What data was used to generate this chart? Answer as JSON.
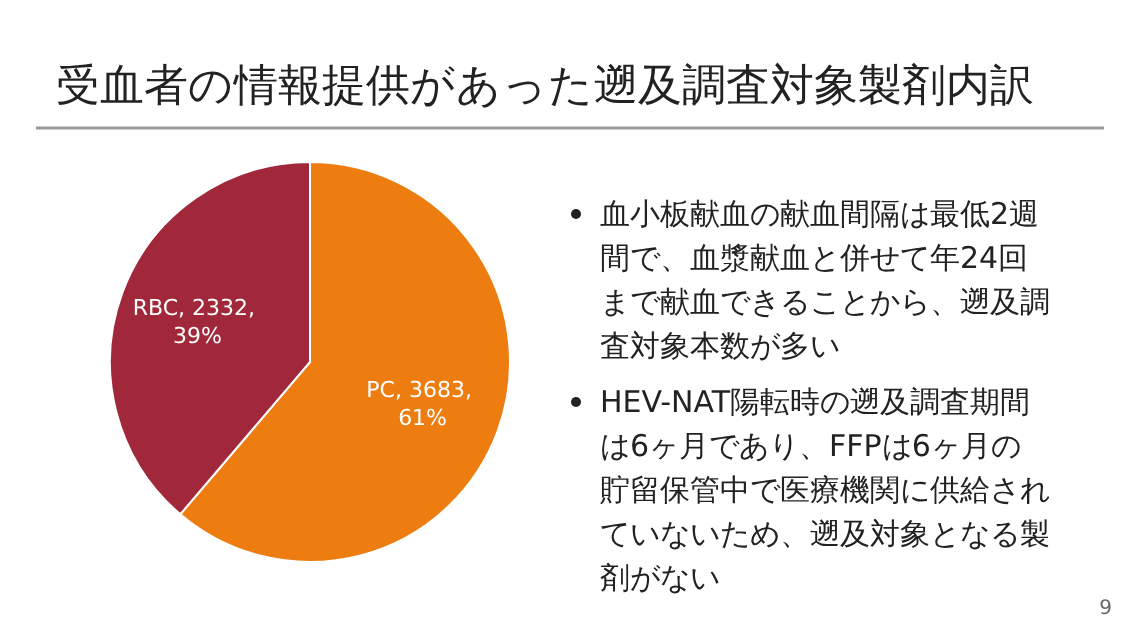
{
  "chart_data": {
    "type": "pie",
    "title": "受血者の情報提供があった遡及調査対象製剤内訳",
    "categories": [
      "PC",
      "RBC"
    ],
    "values": [
      3683,
      2332
    ],
    "colors": [
      "#ED7D10",
      "#A0283A"
    ],
    "value_labels": [
      "3683, 61%",
      "2332, 39%"
    ],
    "annotations": [
      "血小板献血の献血間隔は最低2週間で、血漿献血と併せて年24回まで献血できることから、遡及調査対象本数が多い",
      "HEV-NAT陽転時の遡及調査期間は6ヶ月であり、FFPは6ヶ月の貯留保管中で医療機関に供給されていないため、遡及対象となる製剤がない",
      "9"
    ]
  }
}
